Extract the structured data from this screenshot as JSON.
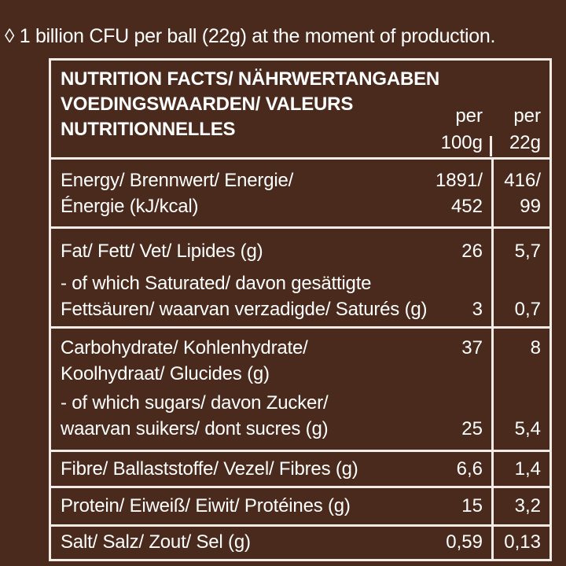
{
  "footnote": "◊ 1 billion CFU per ball (22g) at the moment of production.",
  "header": {
    "title": "NUTRITION FACTS/ NÄHRWERTANGABEN\nVOEDINGSWAARDEN/ VALEURS\nNUTRITIONNELLES",
    "col_100": "per\n100g",
    "col_22": "per\n22g"
  },
  "rows": [
    {
      "label": "Energy/ Brennwert/ Energie/\nÉnergie (kJ/kcal)",
      "v100": "1891/\n452",
      "v22": "416/\n99"
    },
    {
      "label": "Fat/ Fett/ Vet/ Lipides (g)",
      "v100": "26",
      "v22": "5,7"
    },
    {
      "label": "- of which Saturated/ davon gesättigte\nFettsäuren/ waarvan verzadigde/ Saturés (g)",
      "v100": "3",
      "v22": "0,7"
    },
    {
      "label": "Carbohydrate/ Kohlenhydrate/\nKoolhydraat/ Glucides (g)",
      "v100": "37",
      "v22": "8"
    },
    {
      "label": "- of which sugars/ davon Zucker/\nwaarvan suikers/ dont sucres (g)",
      "v100": "25",
      "v22": "5,4"
    },
    {
      "label": "Fibre/ Ballaststoffe/ Vezel/ Fibres (g)",
      "v100": "6,6",
      "v22": "1,4"
    },
    {
      "label": "Protein/ Eiweiß/ Eiwit/ Protéines (g)",
      "v100": "15",
      "v22": "3,2"
    },
    {
      "label": "Salt/ Salz/ Zout/ Sel (g)",
      "v100": "0,59",
      "v22": "0,13"
    }
  ]
}
